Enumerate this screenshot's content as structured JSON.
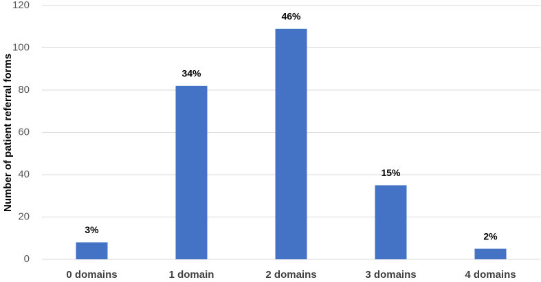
{
  "chart_data": {
    "type": "bar",
    "y_label": "Number of patient referral forms",
    "categories": [
      "0 domains",
      "1 domain",
      "2 domains",
      "3 domains",
      "4 domains"
    ],
    "values": [
      8,
      82,
      109,
      35,
      5
    ],
    "annotations": [
      "3%",
      "34%",
      "46%",
      "15%",
      "2%"
    ],
    "color": "#4472c4",
    "ylim": [
      0,
      120
    ],
    "yticks": [
      0,
      20,
      40,
      60,
      80,
      100,
      120
    ],
    "grid": true
  }
}
